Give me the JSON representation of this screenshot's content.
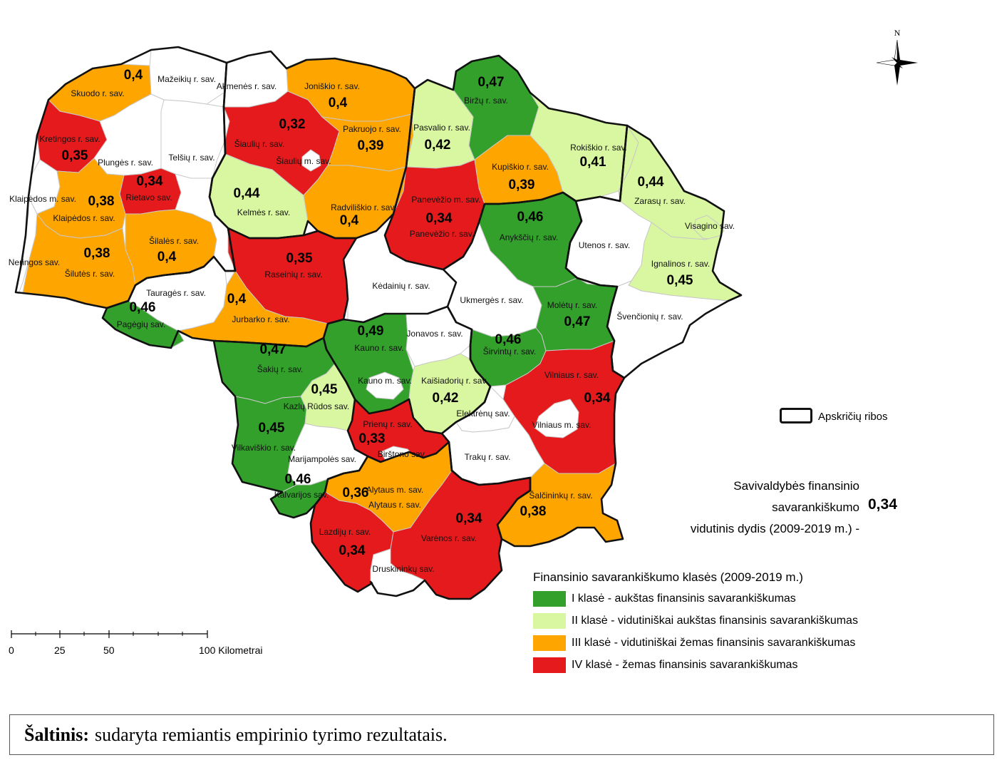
{
  "legend": {
    "title": "Finansinio savarankiškumo klasės (2009-2019 m.)",
    "classes": [
      {
        "label": "I klasė - aukštas finansinis savarankiškumas",
        "color": "#33a02c"
      },
      {
        "label": "II klasė - vidutiniškai aukštas finansinis savarankiškumas",
        "color": "#d9f7a1"
      },
      {
        "label": "III klasė  - vidutiniškai žemas finansinis savarankiškumas",
        "color": "#ffa500"
      },
      {
        "label": "IV klasė - žemas finansinis savarankiškumas",
        "color": "#e41a1c"
      }
    ],
    "border_label": "Apskričių ribos"
  },
  "average": {
    "line1": "Savivaldybės finansinio savarankiškumo",
    "line2": "vidutinis dydis (2009-2019 m.) -",
    "value": "0,34"
  },
  "north_label": "N",
  "scale": {
    "ticks": [
      "0",
      "25",
      "50",
      "100 Kilometrai"
    ]
  },
  "source": {
    "bold": "Šaltinis:",
    "text": "sudaryta remiantis empirinio tyrimo rezultatais."
  },
  "municipalities": [
    {
      "name": "Skuodo r. sav.",
      "value": "0,4",
      "class": 3
    },
    {
      "name": "Mažeikių r. sav.",
      "value": "",
      "class": 0
    },
    {
      "name": "Akmenės r. sav.",
      "value": "",
      "class": 0
    },
    {
      "name": "Joniškio r. sav.",
      "value": "0,4",
      "class": 3
    },
    {
      "name": "Biržų r. sav.",
      "value": "0,47",
      "class": 1
    },
    {
      "name": "Kretingos r. sav.",
      "value": "0,35",
      "class": 4
    },
    {
      "name": "Plungės r. sav.",
      "value": "",
      "class": 0
    },
    {
      "name": "Telšių r. sav.",
      "value": "",
      "class": 0
    },
    {
      "name": "Šiaulių r. sav.",
      "value": "0,32",
      "class": 4
    },
    {
      "name": "Šiaulių m. sav.",
      "value": "",
      "class": 0
    },
    {
      "name": "Pakruojo r. sav.",
      "value": "0,39",
      "class": 3
    },
    {
      "name": "Pasvalio r. sav.",
      "value": "0,42",
      "class": 2
    },
    {
      "name": "Rokiškio r. sav.",
      "value": "0,41",
      "class": 2
    },
    {
      "name": "Kupiškio r. sav.",
      "value": "0,39",
      "class": 3
    },
    {
      "name": "Zarasų r. sav.",
      "value": "0,44",
      "class": 2
    },
    {
      "name": "Klaipėdos m. sav.",
      "value": "",
      "class": 0
    },
    {
      "name": "Klaipėdos r. sav.",
      "value": "0,38",
      "class": 3
    },
    {
      "name": "Rietavo sav.",
      "value": "0,34",
      "class": 4
    },
    {
      "name": "Kelmės r. sav.",
      "value": "0,44",
      "class": 2
    },
    {
      "name": "Radviliškio r. sav.",
      "value": "0,4",
      "class": 3
    },
    {
      "name": "Panevėžio m. sav.",
      "value": "",
      "class": 0
    },
    {
      "name": "Panevėžio r. sav.",
      "value": "0,34",
      "class": 4
    },
    {
      "name": "Anykščių r. sav.",
      "value": "0,46",
      "class": 1
    },
    {
      "name": "Utenos r. sav.",
      "value": "",
      "class": 0
    },
    {
      "name": "Visagino sav.",
      "value": "",
      "class": 2
    },
    {
      "name": "Ignalinos r. sav.",
      "value": "0,45",
      "class": 2
    },
    {
      "name": "Neringos sav.",
      "value": "",
      "class": 0
    },
    {
      "name": "Šilutės r. sav.",
      "value": "0,38",
      "class": 3
    },
    {
      "name": "Šilalės r. sav.",
      "value": "0,4",
      "class": 3
    },
    {
      "name": "Raseinių r. sav.",
      "value": "0,35",
      "class": 4
    },
    {
      "name": "Kėdainių r. sav.",
      "value": "",
      "class": 0
    },
    {
      "name": "Ukmergės r. sav.",
      "value": "",
      "class": 0
    },
    {
      "name": "Molėtų r. sav.",
      "value": "0,47",
      "class": 1
    },
    {
      "name": "Švenčionių r. sav.",
      "value": "",
      "class": 0
    },
    {
      "name": "Tauragės r. sav.",
      "value": "",
      "class": 0
    },
    {
      "name": "Pagėgių sav.",
      "value": "0,46",
      "class": 1
    },
    {
      "name": "Jurbarko r. sav.",
      "value": "0,4",
      "class": 3
    },
    {
      "name": "Kauno r. sav.",
      "value": "0,49",
      "class": 1
    },
    {
      "name": "Jonavos r. sav.",
      "value": "",
      "class": 0
    },
    {
      "name": "Širvintų r. sav.",
      "value": "0,46",
      "class": 1
    },
    {
      "name": "Šakių r. sav.",
      "value": "0,47",
      "class": 1
    },
    {
      "name": "Kauno m. sav.",
      "value": "",
      "class": 0
    },
    {
      "name": "Kaišiadorių r. sav.",
      "value": "0,42",
      "class": 2
    },
    {
      "name": "Vilniaus r. sav.",
      "value": "0,34",
      "class": 4
    },
    {
      "name": "Kazlų Rūdos sav.",
      "value": "0,45",
      "class": 2
    },
    {
      "name": "Elektrėnų sav.",
      "value": "",
      "class": 0
    },
    {
      "name": "Vilniaus m. sav.",
      "value": "",
      "class": 0
    },
    {
      "name": "Vilkaviškio r. sav.",
      "value": "0,45",
      "class": 1
    },
    {
      "name": "Prienų r. sav.",
      "value": "0,33",
      "class": 4
    },
    {
      "name": "Birštono sav.",
      "value": "",
      "class": 0
    },
    {
      "name": "Marijampolės sav.",
      "value": "",
      "class": 0
    },
    {
      "name": "Trakų r. sav.",
      "value": "",
      "class": 0
    },
    {
      "name": "Kalvarijos sav.",
      "value": "0,46",
      "class": 1
    },
    {
      "name": "Alytaus m. sav.",
      "value": "",
      "class": 0
    },
    {
      "name": "Alytaus r. sav.",
      "value": "0,36",
      "class": 3
    },
    {
      "name": "Šalčininkų r. sav.",
      "value": "0,38",
      "class": 3
    },
    {
      "name": "Lazdijų r. sav.",
      "value": "0,34",
      "class": 4
    },
    {
      "name": "Varėnos r. sav.",
      "value": "0,34",
      "class": 4
    },
    {
      "name": "Druskininkų sav.",
      "value": "",
      "class": 0
    }
  ]
}
